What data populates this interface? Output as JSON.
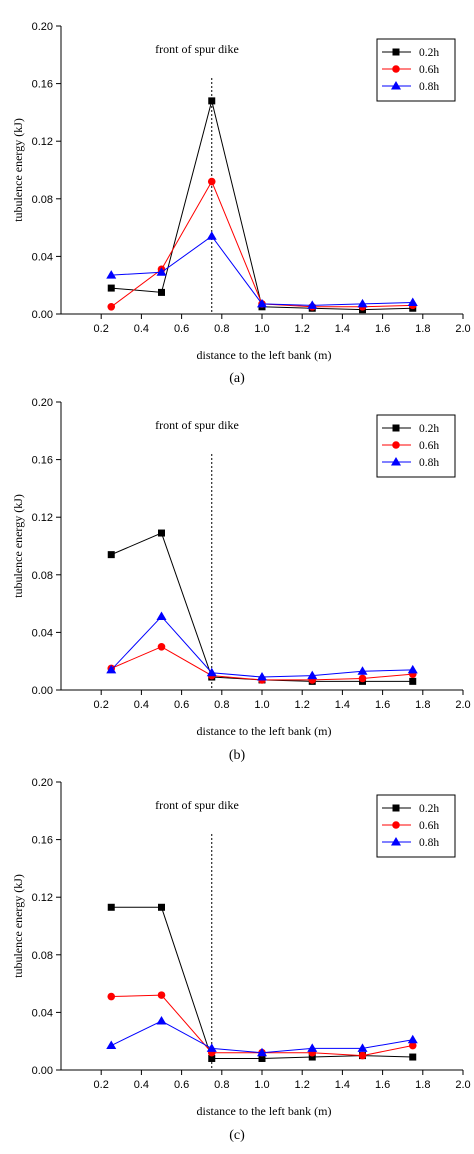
{
  "chart_data": [
    {
      "type": "line",
      "caption": "(a)",
      "annotation": "front of spur dike",
      "marker_line_x": 0.75,
      "xlabel": "distance to the left bank (m)",
      "ylabel": "tubulence energy (kJ)",
      "xlim": [
        0.0,
        2.0
      ],
      "ylim": [
        0.0,
        0.2
      ],
      "xticks": [
        "0.2",
        "0.4",
        "0.6",
        "0.8",
        "1.0",
        "1.2",
        "1.4",
        "1.6",
        "1.8",
        "2.0"
      ],
      "yticks": [
        "0.00",
        "0.04",
        "0.08",
        "0.12",
        "0.16",
        "0.20"
      ],
      "x": [
        0.25,
        0.5,
        0.75,
        1.0,
        1.25,
        1.5,
        1.75
      ],
      "legend_position": "top-right",
      "series": [
        {
          "name": "0.2h",
          "color": "#000000",
          "marker": "square",
          "values": [
            0.018,
            0.015,
            0.148,
            0.005,
            0.004,
            0.003,
            0.004
          ]
        },
        {
          "name": "0.6h",
          "color": "#ff0000",
          "marker": "circle",
          "values": [
            0.005,
            0.031,
            0.092,
            0.007,
            0.005,
            0.005,
            0.006
          ]
        },
        {
          "name": "0.8h",
          "color": "#0000ff",
          "marker": "triangle",
          "values": [
            0.027,
            0.029,
            0.054,
            0.007,
            0.006,
            0.007,
            0.008
          ]
        }
      ]
    },
    {
      "type": "line",
      "caption": "(b)",
      "annotation": "front of spur dike",
      "marker_line_x": 0.75,
      "xlabel": "distance to the left bank (m)",
      "ylabel": "tubulence energy (kJ)",
      "xlim": [
        0.0,
        2.0
      ],
      "ylim": [
        0.0,
        0.2
      ],
      "xticks": [
        "0.2",
        "0.4",
        "0.6",
        "0.8",
        "1.0",
        "1.2",
        "1.4",
        "1.6",
        "1.8",
        "2.0"
      ],
      "yticks": [
        "0.00",
        "0.04",
        "0.08",
        "0.12",
        "0.16",
        "0.20"
      ],
      "x": [
        0.25,
        0.5,
        0.75,
        1.0,
        1.25,
        1.5,
        1.75
      ],
      "legend_position": "top-right",
      "series": [
        {
          "name": "0.2h",
          "color": "#000000",
          "marker": "square",
          "values": [
            0.094,
            0.109,
            0.009,
            0.007,
            0.006,
            0.006,
            0.006
          ]
        },
        {
          "name": "0.6h",
          "color": "#ff0000",
          "marker": "circle",
          "values": [
            0.015,
            0.03,
            0.01,
            0.007,
            0.007,
            0.008,
            0.011
          ]
        },
        {
          "name": "0.8h",
          "color": "#0000ff",
          "marker": "triangle",
          "values": [
            0.014,
            0.051,
            0.012,
            0.009,
            0.01,
            0.013,
            0.014
          ]
        }
      ]
    },
    {
      "type": "line",
      "caption": "(c)",
      "annotation": "front of spur dike",
      "marker_line_x": 0.75,
      "xlabel": "distance to the left bank (m)",
      "ylabel": "tubulence energy (kJ)",
      "xlim": [
        0.0,
        2.0
      ],
      "ylim": [
        0.0,
        0.2
      ],
      "xticks": [
        "0.2",
        "0.4",
        "0.6",
        "0.8",
        "1.0",
        "1.2",
        "1.4",
        "1.6",
        "1.8",
        "2.0"
      ],
      "yticks": [
        "0.00",
        "0.04",
        "0.08",
        "0.12",
        "0.16",
        "0.20"
      ],
      "x": [
        0.25,
        0.5,
        0.75,
        1.0,
        1.25,
        1.5,
        1.75
      ],
      "legend_position": "top-right",
      "series": [
        {
          "name": "0.2h",
          "color": "#000000",
          "marker": "square",
          "values": [
            0.113,
            0.113,
            0.008,
            0.008,
            0.009,
            0.01,
            0.009
          ]
        },
        {
          "name": "0.6h",
          "color": "#ff0000",
          "marker": "circle",
          "values": [
            0.051,
            0.052,
            0.012,
            0.012,
            0.012,
            0.01,
            0.017
          ]
        },
        {
          "name": "0.8h",
          "color": "#0000ff",
          "marker": "triangle",
          "values": [
            0.017,
            0.034,
            0.015,
            0.012,
            0.015,
            0.015,
            0.021
          ]
        }
      ]
    }
  ]
}
